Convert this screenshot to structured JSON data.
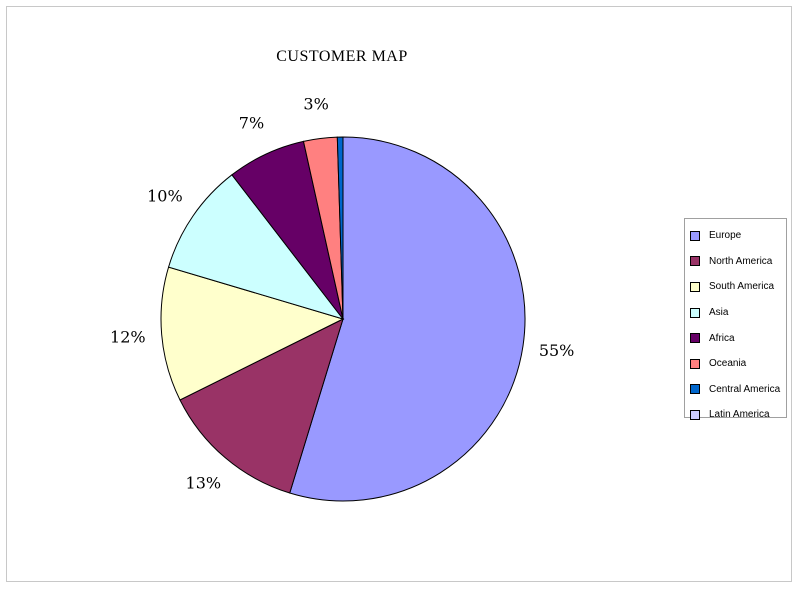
{
  "chart_data": {
    "type": "pie",
    "title": "CUSTOMER  MAP",
    "categories": [
      "Europe",
      "North America",
      "South America",
      "Asia",
      "Africa",
      "Oceania",
      "Central America",
      "Latin America"
    ],
    "values": [
      55,
      13,
      12,
      10,
      7,
      3,
      0.5,
      0.0
    ],
    "labels": [
      "55%",
      "13%",
      "12%",
      "10%",
      "7%",
      "3%",
      "",
      ""
    ],
    "colors": [
      "#9999ff",
      "#993366",
      "#ffffcc",
      "#ccffff",
      "#660066",
      "#ff8080",
      "#0066cc",
      "#ccccff"
    ],
    "legend_position": "right"
  }
}
